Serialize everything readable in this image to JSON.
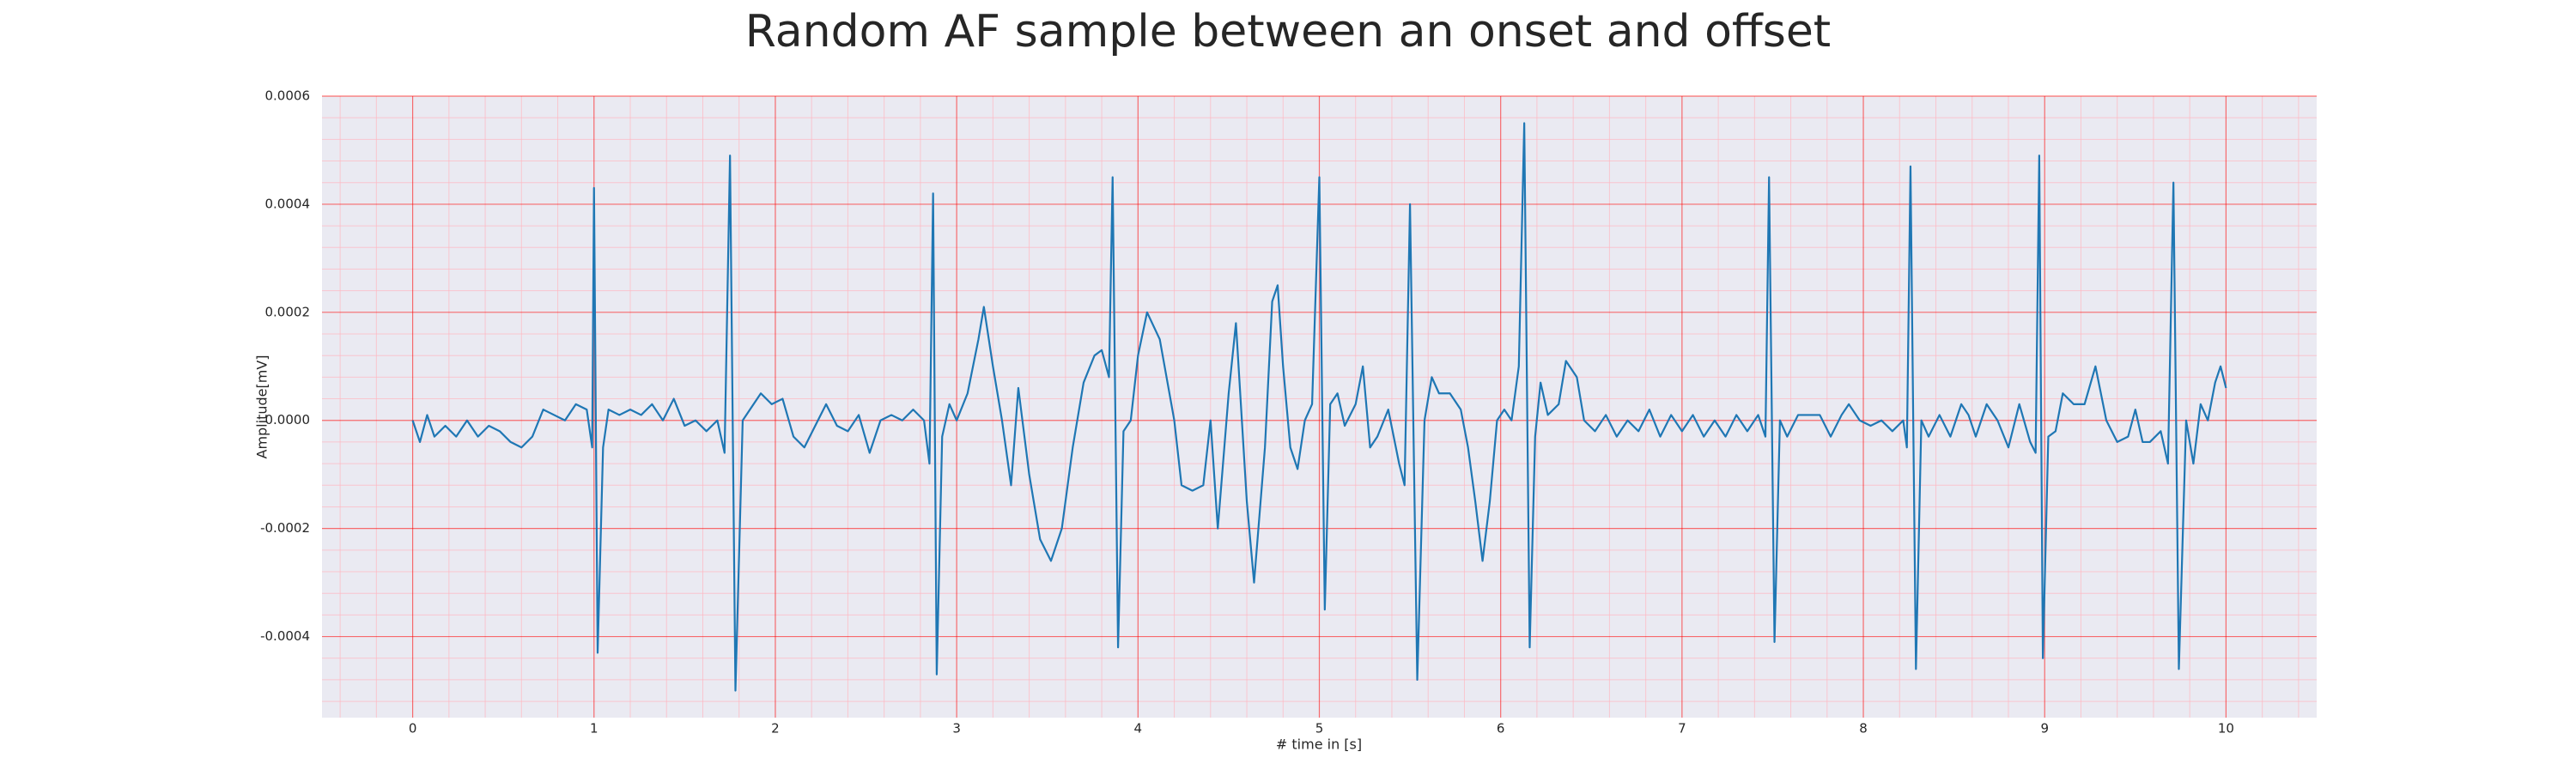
{
  "chart_data": {
    "type": "line",
    "title": "Random AF sample between an onset and offset",
    "x_label": "# time in [s]",
    "y_label": "Amplitude[mV]",
    "color": "#1f77b4",
    "grid": true,
    "minor_grid": true,
    "xlim": [
      -0.5,
      10.5
    ],
    "ylim": [
      -0.00055,
      0.0006
    ],
    "xticks": [
      0,
      1,
      2,
      3,
      4,
      5,
      6,
      7,
      8,
      9,
      10
    ],
    "yticks": [
      {
        "value": -0.0004,
        "label": "-0.0004"
      },
      {
        "value": -0.0002,
        "label": "-0.0002"
      },
      {
        "value": 0,
        "label": "0.0000"
      },
      {
        "value": 0.0002,
        "label": "0.0002"
      },
      {
        "value": 0.0004,
        "label": "0.0004"
      },
      {
        "value": 0.0006,
        "label": "0.0006"
      }
    ],
    "xminorticks": [
      -0.4,
      -0.2,
      0.2,
      0.4,
      0.6,
      0.8,
      1.2,
      1.4,
      1.6,
      1.8,
      2.2,
      2.4,
      2.6,
      2.8,
      3.2,
      3.4,
      3.6,
      3.8,
      4.2,
      4.4,
      4.6,
      4.8,
      5.2,
      5.4,
      5.6,
      5.8,
      6.2,
      6.4,
      6.6,
      6.8,
      7.2,
      7.4,
      7.6,
      7.8,
      8.2,
      8.4,
      8.6,
      8.8,
      9.2,
      9.4,
      9.6,
      9.8,
      10.2,
      10.4
    ],
    "yminorticks": [
      -0.00052,
      -0.00048,
      -0.00044,
      -0.00036,
      -0.00032,
      -0.00028,
      -0.00024,
      -0.00016,
      -0.00012,
      -8e-05,
      -4e-05,
      4e-05,
      8e-05,
      0.00012,
      0.00016,
      0.00024,
      0.00028,
      0.00032,
      0.00036,
      0.00044,
      0.00048,
      0.00052,
      0.00056
    ],
    "x": [
      0.0,
      0.04,
      0.08,
      0.12,
      0.18,
      0.24,
      0.3,
      0.36,
      0.42,
      0.48,
      0.54,
      0.6,
      0.66,
      0.72,
      0.78,
      0.84,
      0.9,
      0.96,
      0.99,
      1.0,
      1.02,
      1.05,
      1.08,
      1.14,
      1.2,
      1.26,
      1.32,
      1.38,
      1.44,
      1.5,
      1.56,
      1.62,
      1.68,
      1.72,
      1.75,
      1.78,
      1.82,
      1.86,
      1.92,
      1.98,
      2.04,
      2.1,
      2.16,
      2.22,
      2.28,
      2.34,
      2.4,
      2.46,
      2.52,
      2.58,
      2.64,
      2.7,
      2.76,
      2.82,
      2.85,
      2.87,
      2.89,
      2.92,
      2.96,
      3.0,
      3.06,
      3.12,
      3.15,
      3.2,
      3.25,
      3.3,
      3.34,
      3.4,
      3.46,
      3.52,
      3.58,
      3.64,
      3.7,
      3.76,
      3.8,
      3.84,
      3.86,
      3.89,
      3.92,
      3.96,
      4.0,
      4.05,
      4.12,
      4.2,
      4.24,
      4.3,
      4.36,
      4.4,
      4.44,
      4.5,
      4.54,
      4.6,
      4.64,
      4.7,
      4.74,
      4.77,
      4.8,
      4.84,
      4.88,
      4.92,
      4.96,
      5.0,
      5.03,
      5.06,
      5.1,
      5.14,
      5.2,
      5.24,
      5.28,
      5.32,
      5.38,
      5.44,
      5.47,
      5.5,
      5.54,
      5.58,
      5.62,
      5.66,
      5.72,
      5.78,
      5.82,
      5.86,
      5.9,
      5.94,
      5.98,
      6.02,
      6.06,
      6.1,
      6.13,
      6.16,
      6.19,
      6.22,
      6.26,
      6.32,
      6.36,
      6.42,
      6.46,
      6.52,
      6.58,
      6.64,
      6.7,
      6.76,
      6.82,
      6.88,
      6.94,
      7.0,
      7.06,
      7.12,
      7.18,
      7.24,
      7.3,
      7.36,
      7.42,
      7.46,
      7.48,
      7.51,
      7.54,
      7.58,
      7.64,
      7.7,
      7.76,
      7.82,
      7.88,
      7.92,
      7.98,
      8.04,
      8.1,
      8.16,
      8.22,
      8.24,
      8.26,
      8.29,
      8.32,
      8.36,
      8.42,
      8.48,
      8.54,
      8.58,
      8.62,
      8.68,
      8.74,
      8.8,
      8.86,
      8.92,
      8.95,
      8.97,
      8.99,
      9.02,
      9.06,
      9.1,
      9.16,
      9.22,
      9.28,
      9.34,
      9.4,
      9.46,
      9.5,
      9.54,
      9.58,
      9.64,
      9.68,
      9.71,
      9.74,
      9.78,
      9.82,
      9.86,
      9.9,
      9.94,
      9.97,
      10.0
    ],
    "values": [
      0.0,
      -4e-05,
      1e-05,
      -3e-05,
      -1e-05,
      -3e-05,
      0.0,
      -3e-05,
      -1e-05,
      -2e-05,
      -4e-05,
      -5e-05,
      -3e-05,
      2e-05,
      1e-05,
      0.0,
      3e-05,
      2e-05,
      -5e-05,
      0.00043,
      -0.00043,
      -5e-05,
      2e-05,
      1e-05,
      2e-05,
      1e-05,
      3e-05,
      0.0,
      4e-05,
      -1e-05,
      0.0,
      -2e-05,
      0.0,
      -6e-05,
      0.00049,
      -0.0005,
      0.0,
      2e-05,
      5e-05,
      3e-05,
      4e-05,
      -3e-05,
      -5e-05,
      -1e-05,
      3e-05,
      -1e-05,
      -2e-05,
      1e-05,
      -6e-05,
      0.0,
      1e-05,
      0.0,
      2e-05,
      0.0,
      -8e-05,
      0.00042,
      -0.00047,
      -3e-05,
      3e-05,
      0.0,
      5e-05,
      0.00015,
      0.00021,
      0.0001,
      0.0,
      -0.00012,
      6e-05,
      -0.0001,
      -0.00022,
      -0.00026,
      -0.0002,
      -5e-05,
      7e-05,
      0.00012,
      0.00013,
      8e-05,
      0.00045,
      -0.00042,
      -2e-05,
      0.0,
      0.00012,
      0.0002,
      0.00015,
      0.0,
      -0.00012,
      -0.00013,
      -0.00012,
      0.0,
      -0.0002,
      5e-05,
      0.00018,
      -0.00015,
      -0.0003,
      -5e-05,
      0.00022,
      0.00025,
      0.0001,
      -5e-05,
      -9e-05,
      0.0,
      3e-05,
      0.00045,
      -0.00035,
      3e-05,
      5e-05,
      -1e-05,
      3e-05,
      0.0001,
      -5e-05,
      -3e-05,
      2e-05,
      -8e-05,
      -0.00012,
      0.0004,
      -0.00048,
      0.0,
      8e-05,
      5e-05,
      5e-05,
      2e-05,
      -5e-05,
      -0.00015,
      -0.00026,
      -0.00015,
      0.0,
      2e-05,
      0.0,
      0.0001,
      0.00055,
      -0.00042,
      -3e-05,
      7e-05,
      1e-05,
      3e-05,
      0.00011,
      8e-05,
      0.0,
      -2e-05,
      1e-05,
      -3e-05,
      0.0,
      -2e-05,
      2e-05,
      -3e-05,
      1e-05,
      -2e-05,
      1e-05,
      -3e-05,
      0.0,
      -3e-05,
      1e-05,
      -2e-05,
      1e-05,
      -3e-05,
      0.00045,
      -0.00041,
      0.0,
      -3e-05,
      1e-05,
      1e-05,
      1e-05,
      -3e-05,
      1e-05,
      3e-05,
      0.0,
      -1e-05,
      0.0,
      -2e-05,
      0.0,
      -5e-05,
      0.00047,
      -0.00046,
      0.0,
      -3e-05,
      1e-05,
      -3e-05,
      3e-05,
      1e-05,
      -3e-05,
      3e-05,
      0.0,
      -5e-05,
      3e-05,
      -4e-05,
      -6e-05,
      0.00049,
      -0.00044,
      -3e-05,
      -2e-05,
      5e-05,
      3e-05,
      3e-05,
      0.0001,
      0.0,
      -4e-05,
      -3e-05,
      2e-05,
      -4e-05,
      -4e-05,
      -2e-05,
      -8e-05,
      0.00044,
      -0.00046,
      0.0,
      -8e-05,
      3e-05,
      0.0,
      7e-05,
      0.0001,
      6e-05
    ]
  }
}
